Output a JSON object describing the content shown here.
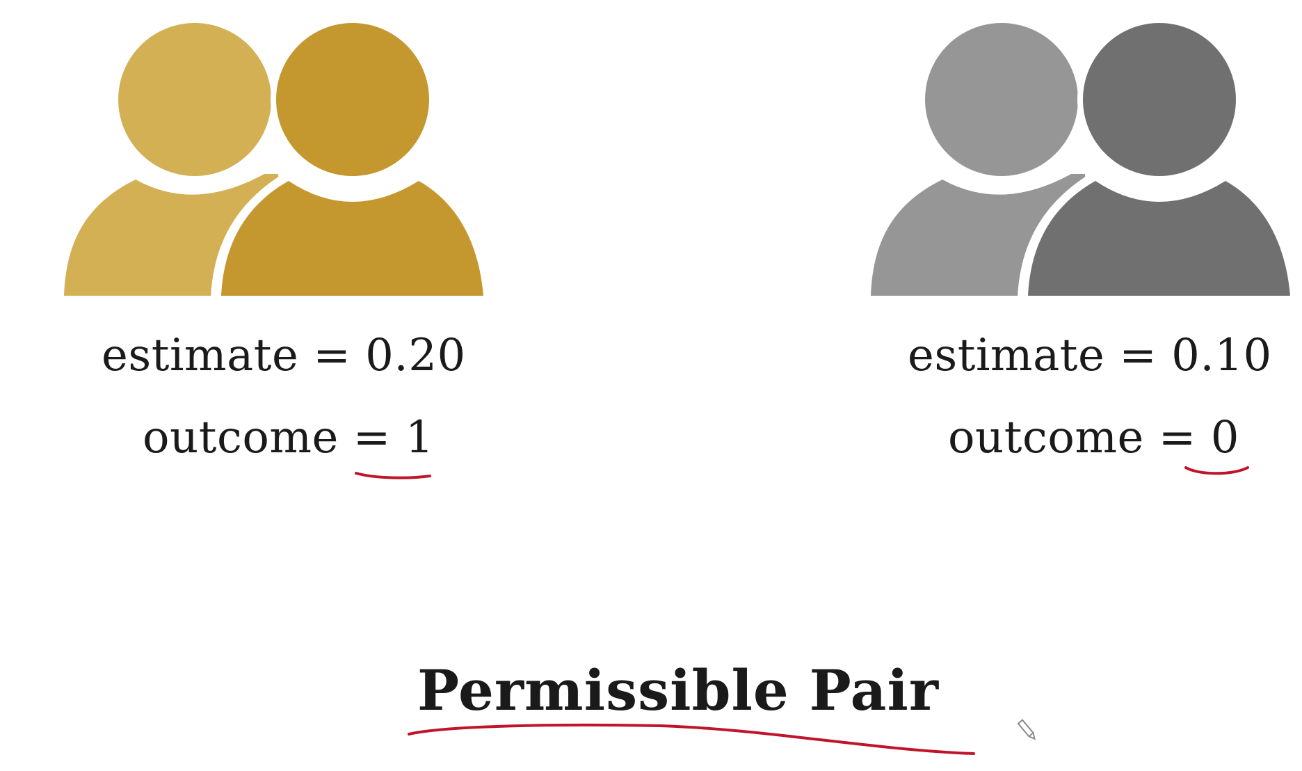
{
  "left_person": {
    "estimate": "estimate = 0.20",
    "outcome_label": "outcome",
    "outcome_value": "= 1",
    "icon": "two-people-icon",
    "color_front": "#C4972F",
    "color_back": "#D4B055"
  },
  "right_person": {
    "estimate": "estimate = 0.10",
    "outcome_label": "outcome",
    "outcome_value": "= 0",
    "icon": "two-people-icon",
    "color_front": "#707070",
    "color_back": "#969696"
  },
  "title": "Permissible Pair",
  "annotation_color": "#C0142A"
}
